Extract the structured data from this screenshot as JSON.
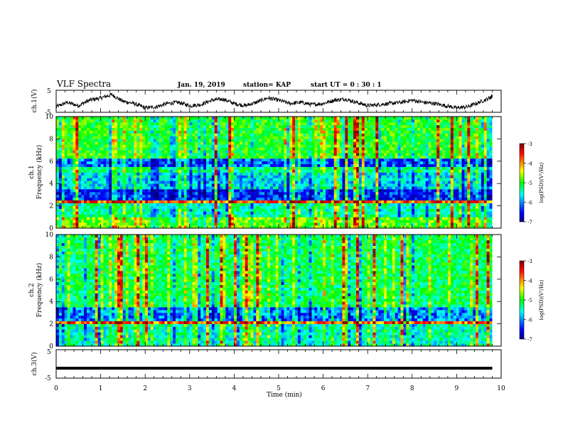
{
  "header": {
    "title": "VLF Spectra",
    "date": "Jan. 19, 2019",
    "station": "station= KAP",
    "start": "start UT = 0 : 30 : 1"
  },
  "chart_data": [
    {
      "type": "line",
      "panel": "waveform-ch1",
      "ylabel": "ch.1(V)",
      "ylim": [
        -5,
        5
      ],
      "yticks": [
        "5",
        "-5"
      ],
      "xlim": [
        0,
        10
      ],
      "x": [
        0.0,
        0.25,
        0.5,
        0.75,
        1.0,
        1.25,
        1.5,
        1.75,
        2.0,
        2.25,
        2.5,
        2.75,
        3.0,
        3.25,
        3.5,
        3.75,
        4.0,
        4.25,
        4.5,
        4.75,
        5.0,
        5.25,
        5.5,
        5.75,
        6.0,
        6.25,
        6.5,
        6.75,
        7.0,
        7.25,
        7.5,
        7.75,
        8.0,
        8.25,
        8.5,
        8.75,
        9.0,
        9.25,
        9.5,
        9.75,
        9.8
      ],
      "y": [
        -2.5,
        -0.5,
        -2.0,
        0.5,
        1.5,
        3.0,
        0.0,
        -1.0,
        -3.0,
        -2.5,
        -1.0,
        -0.5,
        -2.0,
        -1.5,
        0.5,
        1.0,
        -1.0,
        -2.0,
        -0.5,
        1.5,
        0.5,
        -1.0,
        -0.5,
        -1.5,
        -1.0,
        0.5,
        1.0,
        -0.5,
        -2.0,
        -1.5,
        -1.0,
        -0.5,
        0.5,
        -0.5,
        -1.0,
        -2.0,
        -3.0,
        -2.5,
        -0.5,
        1.5,
        2.5
      ]
    },
    {
      "type": "heatmap",
      "panel": "spectrogram-ch1",
      "ylabel": "ch.1",
      "ylabel2": "Frequency (kHz)",
      "ylim": [
        0,
        10
      ],
      "yticks": [
        "0",
        "2",
        "4",
        "6",
        "8",
        "10"
      ],
      "xlim": [
        0,
        10
      ],
      "colorbar": {
        "label": "log(PSD)(V²/Hz)",
        "range": [
          -7,
          -3
        ],
        "ticks": [
          "-3",
          "-4",
          "-5",
          "-6",
          "-7"
        ]
      },
      "bands": [
        {
          "f": [
            0.0,
            1.0
          ],
          "level": -4.8
        },
        {
          "f": [
            1.0,
            2.2
          ],
          "level": -5.4
        },
        {
          "f": [
            2.2,
            2.5
          ],
          "level": -3.8
        },
        {
          "f": [
            2.5,
            3.4
          ],
          "level": -6.3
        },
        {
          "f": [
            3.4,
            4.9
          ],
          "level": -5.7
        },
        {
          "f": [
            4.9,
            5.6
          ],
          "level": -5.3
        },
        {
          "f": [
            5.6,
            6.3
          ],
          "level": -6.1
        },
        {
          "f": [
            6.3,
            10.0
          ],
          "level": -5.0
        }
      ]
    },
    {
      "type": "heatmap",
      "panel": "spectrogram-ch2",
      "ylabel": "ch.2",
      "ylabel2": "Frequency (kHz)",
      "ylim": [
        0,
        10
      ],
      "yticks": [
        "0",
        "2",
        "4",
        "6",
        "8",
        "10"
      ],
      "xlim": [
        0,
        10
      ],
      "colorbar": {
        "label": "log(PSD)(V²/Hz)",
        "range": [
          -7,
          -3
        ],
        "ticks": [
          "-3",
          "-4",
          "-5",
          "-6",
          "-7"
        ]
      },
      "bands": [
        {
          "f": [
            0.0,
            1.9
          ],
          "level": -5.5
        },
        {
          "f": [
            1.9,
            2.2
          ],
          "level": -4.0
        },
        {
          "f": [
            2.2,
            3.4
          ],
          "level": -6.0
        },
        {
          "f": [
            3.4,
            10.0
          ],
          "level": -5.2
        }
      ]
    },
    {
      "type": "line",
      "panel": "waveform-ch3",
      "ylabel": "ch.3(V)",
      "ylim": [
        -5,
        5
      ],
      "yticks": [
        "5",
        "-5"
      ],
      "xlim": [
        0,
        10
      ],
      "x": [
        0,
        9.8
      ],
      "y": [
        -1.5,
        -1.5
      ]
    }
  ],
  "xaxis": {
    "label": "Time (min)",
    "ticks": [
      "0",
      "1",
      "2",
      "3",
      "4",
      "5",
      "6",
      "7",
      "8",
      "9",
      "10"
    ]
  },
  "colors": {
    "colormap": [
      "#000080",
      "#0000ff",
      "#00ffff",
      "#00ff00",
      "#ffff00",
      "#ff0000",
      "#800000"
    ]
  }
}
